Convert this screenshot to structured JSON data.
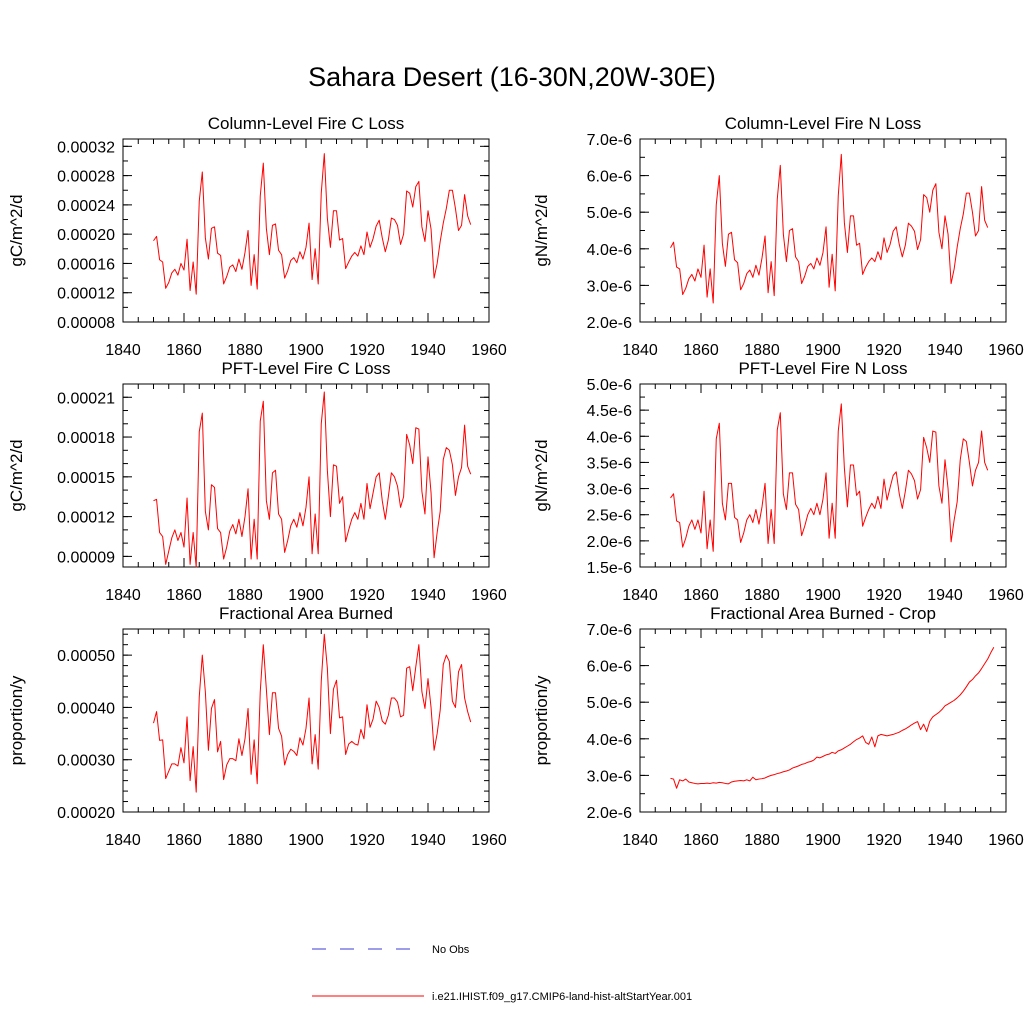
{
  "figure": {
    "title": "Sahara Desert (16-30N,20W-30E)"
  },
  "legend": {
    "entries": [
      {
        "label": "No Obs",
        "color": "#3b3bd6",
        "style": "dashed"
      },
      {
        "label": "i.e21.IHIST.f09_g17.CMIP6-land-hist-altStartYear.001",
        "color": "#ff0000",
        "style": "solid"
      }
    ]
  },
  "chart_data": [
    {
      "type": "line",
      "title": "Column-Level Fire C Loss",
      "ylabel": "gC/m^2/d",
      "xlim": [
        1840,
        1960
      ],
      "ylim": [
        8e-05,
        0.00033
      ],
      "xticks": [
        1840,
        1860,
        1880,
        1900,
        1920,
        1940,
        1960
      ],
      "yticks": [
        8e-05,
        0.00012,
        0.00016,
        0.0002,
        0.00024,
        0.00028,
        0.00032
      ],
      "ytick_labels": [
        "0.00008",
        "0.00012",
        "0.00016",
        "0.00020",
        "0.00024",
        "0.00028",
        "0.00032"
      ],
      "yminor": 2e-05,
      "x_start": 1850,
      "series": [
        {
          "color": "#ff0000",
          "values": [
            0.000191,
            0.000197,
            0.000165,
            0.000162,
            0.000126,
            0.000134,
            0.000147,
            0.000152,
            0.000144,
            0.00016,
            0.000151,
            0.000193,
            0.000123,
            0.000162,
            0.000118,
            0.000245,
            0.000285,
            0.000195,
            0.000166,
            0.000208,
            0.00021,
            0.000174,
            0.000171,
            0.000132,
            0.000142,
            0.000155,
            0.000158,
            0.000149,
            0.000166,
            0.000152,
            0.000175,
            0.000205,
            0.00013,
            0.000172,
            0.000125,
            0.000252,
            0.000297,
            0.000208,
            0.000172,
            0.000212,
            0.000214,
            0.000178,
            0.000172,
            0.00014,
            0.00015,
            0.000164,
            0.000168,
            0.000161,
            0.000176,
            0.000166,
            0.000182,
            0.000215,
            0.000138,
            0.00018,
            0.000132,
            0.000256,
            0.00031,
            0.000222,
            0.000182,
            0.000232,
            0.000232,
            0.000192,
            0.000194,
            0.000153,
            0.000162,
            0.00017,
            0.000175,
            0.00017,
            0.000184,
            0.000172,
            0.000203,
            0.000182,
            0.000194,
            0.000211,
            0.000219,
            0.000195,
            0.000176,
            0.000192,
            0.000222,
            0.00022,
            0.000212,
            0.000186,
            0.0002,
            0.000259,
            0.000256,
            0.000237,
            0.000265,
            0.000272,
            0.00021,
            0.00019,
            0.000232,
            0.000207,
            0.00014,
            0.00016,
            0.00019,
            0.000215,
            0.000235,
            0.00026,
            0.00026,
            0.000235,
            0.000205,
            0.000212,
            0.000254,
            0.000225,
            0.000213
          ]
        }
      ]
    },
    {
      "type": "line",
      "title": "Column-Level Fire N Loss",
      "ylabel": "gN/m^2/d",
      "xlim": [
        1840,
        1960
      ],
      "ylim": [
        2e-06,
        7e-06
      ],
      "xticks": [
        1840,
        1860,
        1880,
        1900,
        1920,
        1940,
        1960
      ],
      "yticks": [
        2e-06,
        3e-06,
        4e-06,
        5e-06,
        6e-06,
        7e-06
      ],
      "ytick_labels": [
        "2.0e-6",
        "3.0e-6",
        "4.0e-6",
        "5.0e-6",
        "6.0e-6",
        "7.0e-6"
      ],
      "yminor": 5e-07,
      "x_start": 1850,
      "series": [
        {
          "color": "#ff0000",
          "values": [
            4.03e-06,
            4.18e-06,
            3.5e-06,
            3.45e-06,
            2.75e-06,
            2.92e-06,
            3.18e-06,
            3.3e-06,
            3.12e-06,
            3.45e-06,
            3.22e-06,
            4.1e-06,
            2.68e-06,
            3.45e-06,
            2.52e-06,
            5.2e-06,
            6e-06,
            4.15e-06,
            3.52e-06,
            4.4e-06,
            4.45e-06,
            3.7e-06,
            3.62e-06,
            2.88e-06,
            3.05e-06,
            3.32e-06,
            3.42e-06,
            3.22e-06,
            3.55e-06,
            3.28e-06,
            3.75e-06,
            4.35e-06,
            2.8e-06,
            3.65e-06,
            2.72e-06,
            5.35e-06,
            6.28e-06,
            4.4e-06,
            3.65e-06,
            4.5e-06,
            4.55e-06,
            3.78e-06,
            3.65e-06,
            3.05e-06,
            3.25e-06,
            3.52e-06,
            3.6e-06,
            3.45e-06,
            3.75e-06,
            3.55e-06,
            3.9e-06,
            4.6e-06,
            2.95e-06,
            3.85e-06,
            2.85e-06,
            5.45e-06,
            6.58e-06,
            4.72e-06,
            3.9e-06,
            4.9e-06,
            4.9e-06,
            4.1e-06,
            4.15e-06,
            3.3e-06,
            3.5e-06,
            3.65e-06,
            3.75e-06,
            3.65e-06,
            3.92e-06,
            3.7e-06,
            4.3e-06,
            3.9e-06,
            4.12e-06,
            4.48e-06,
            4.6e-06,
            4.12e-06,
            3.78e-06,
            4.1e-06,
            4.7e-06,
            4.62e-06,
            4.48e-06,
            3.98e-06,
            4.25e-06,
            5.48e-06,
            5.4e-06,
            5e-06,
            5.6e-06,
            5.78e-06,
            4.45e-06,
            4e-06,
            4.9e-06,
            4.4e-06,
            3.05e-06,
            3.45e-06,
            4.05e-06,
            4.55e-06,
            4.95e-06,
            5.52e-06,
            5.52e-06,
            5e-06,
            4.35e-06,
            4.5e-06,
            5.7e-06,
            4.78e-06,
            4.58e-06
          ]
        }
      ]
    },
    {
      "type": "line",
      "title": "PFT-Level Fire C Loss",
      "ylabel": "gC/m^2/d",
      "xlim": [
        1840,
        1960
      ],
      "ylim": [
        8.2e-05,
        0.00022
      ],
      "xticks": [
        1840,
        1860,
        1880,
        1900,
        1920,
        1940,
        1960
      ],
      "yticks": [
        9e-05,
        0.00012,
        0.00015,
        0.00018,
        0.00021
      ],
      "ytick_labels": [
        "0.00009",
        "0.00012",
        "0.00015",
        "0.00018",
        "0.00021"
      ],
      "yminor": 1e-05,
      "x_start": 1850,
      "series": [
        {
          "color": "#ff0000",
          "values": [
            0.000132,
            0.000133,
            0.000108,
            0.000105,
            8.4e-05,
            9.4e-05,
            0.000104,
            0.00011,
            0.000102,
            0.000108,
            9.7e-05,
            0.000134,
            8.4e-05,
            0.000108,
            8.2e-05,
            0.000184,
            0.000198,
            0.000124,
            0.00011,
            0.000144,
            0.000142,
            0.000111,
            0.000108,
            8.8e-05,
            9.7e-05,
            0.000109,
            0.000114,
            0.000107,
            0.000118,
            0.000105,
            0.00012,
            0.000141,
            8.8e-05,
            0.000118,
            8.8e-05,
            0.000192,
            0.000207,
            0.000132,
            0.000118,
            0.000153,
            0.000155,
            0.000122,
            0.000118,
            9.3e-05,
            0.000102,
            0.000113,
            0.000118,
            0.000112,
            0.000123,
            0.000113,
            0.000127,
            0.00015,
            9.2e-05,
            0.000122,
            9.2e-05,
            0.00019,
            0.000214,
            0.000155,
            0.00012,
            0.000159,
            0.000158,
            0.00013,
            0.000135,
            0.000101,
            0.00011,
            0.000118,
            0.000123,
            0.000118,
            0.00013,
            0.000118,
            0.000145,
            0.000126,
            0.000138,
            0.00015,
            0.000153,
            0.000132,
            0.000118,
            0.000135,
            0.000153,
            0.00015,
            0.000143,
            0.000127,
            0.000135,
            0.000182,
            0.000174,
            0.00016,
            0.000187,
            0.000186,
            0.000139,
            0.000122,
            0.000165,
            0.000138,
            8.9e-05,
            0.000108,
            0.000124,
            0.000163,
            0.000172,
            0.00017,
            0.000159,
            0.000136,
            0.00015,
            0.000157,
            0.000189,
            0.000158,
            0.000152
          ]
        }
      ]
    },
    {
      "type": "line",
      "title": "PFT-Level Fire N Loss",
      "ylabel": "gN/m^2/d",
      "xlim": [
        1840,
        1960
      ],
      "ylim": [
        1.5e-06,
        5e-06
      ],
      "xticks": [
        1840,
        1860,
        1880,
        1900,
        1920,
        1940,
        1960
      ],
      "yticks": [
        1.5e-06,
        2e-06,
        2.5e-06,
        3e-06,
        3.5e-06,
        4e-06,
        4.5e-06,
        5e-06
      ],
      "ytick_labels": [
        "1.5e-6",
        "2.0e-6",
        "2.5e-6",
        "3.0e-6",
        "3.5e-6",
        "4.0e-6",
        "4.5e-6",
        "5.0e-6"
      ],
      "yminor": 2.5e-07,
      "x_start": 1850,
      "series": [
        {
          "color": "#ff0000",
          "values": [
            2.82e-06,
            2.9e-06,
            2.38e-06,
            2.35e-06,
            1.88e-06,
            2.05e-06,
            2.28e-06,
            2.4e-06,
            2.22e-06,
            2.4e-06,
            2.15e-06,
            2.95e-06,
            1.85e-06,
            2.4e-06,
            1.8e-06,
            3.95e-06,
            4.25e-06,
            2.72e-06,
            2.4e-06,
            3.1e-06,
            3.1e-06,
            2.45e-06,
            2.4e-06,
            1.97e-06,
            2.15e-06,
            2.4e-06,
            2.5e-06,
            2.35e-06,
            2.6e-06,
            2.32e-06,
            2.65e-06,
            3.1e-06,
            1.95e-06,
            2.6e-06,
            1.95e-06,
            4.12e-06,
            4.45e-06,
            2.9e-06,
            2.6e-06,
            3.3e-06,
            3.3e-06,
            2.7e-06,
            2.6e-06,
            2.1e-06,
            2.28e-06,
            2.5e-06,
            2.62e-06,
            2.5e-06,
            2.72e-06,
            2.5e-06,
            2.8e-06,
            3.3e-06,
            2.05e-06,
            2.72e-06,
            2.05e-06,
            4.1e-06,
            4.62e-06,
            3.4e-06,
            2.65e-06,
            3.45e-06,
            3.45e-06,
            2.87e-06,
            2.95e-06,
            2.28e-06,
            2.45e-06,
            2.6e-06,
            2.72e-06,
            2.62e-06,
            2.85e-06,
            2.62e-06,
            3.18e-06,
            2.78e-06,
            3.02e-06,
            3.25e-06,
            3.32e-06,
            2.9e-06,
            2.62e-06,
            2.95e-06,
            3.35e-06,
            3.28e-06,
            3.15e-06,
            2.8e-06,
            2.98e-06,
            3.98e-06,
            3.78e-06,
            3.5e-06,
            4.1e-06,
            4.08e-06,
            3.05e-06,
            2.72e-06,
            3.55e-06,
            3e-06,
            1.98e-06,
            2.4e-06,
            2.75e-06,
            3.55e-06,
            3.95e-06,
            3.9e-06,
            3.5e-06,
            3.05e-06,
            3.35e-06,
            3.5e-06,
            4.1e-06,
            3.5e-06,
            3.35e-06
          ]
        }
      ]
    },
    {
      "type": "line",
      "title": "Fractional Area Burned",
      "ylabel": "proportion/y",
      "xlim": [
        1840,
        1960
      ],
      "ylim": [
        0.0002,
        0.00055
      ],
      "xticks": [
        1840,
        1860,
        1880,
        1900,
        1920,
        1940,
        1960
      ],
      "yticks": [
        0.0002,
        0.0003,
        0.0004,
        0.0005
      ],
      "ytick_labels": [
        "0.00020",
        "0.00030",
        "0.00040",
        "0.00050"
      ],
      "yminor": 2e-05,
      "x_start": 1850,
      "series": [
        {
          "color": "#ff0000",
          "values": [
            0.00037,
            0.000392,
            0.000337,
            0.000338,
            0.000264,
            0.000278,
            0.000292,
            0.000292,
            0.000288,
            0.000323,
            0.000294,
            0.000382,
            0.00026,
            0.000325,
            0.000238,
            0.00042,
            0.0005,
            0.00043,
            0.000318,
            0.000398,
            0.000415,
            0.000315,
            0.000335,
            0.000262,
            0.00029,
            0.000302,
            0.000302,
            0.000298,
            0.00034,
            0.000308,
            0.00034,
            0.000398,
            0.000272,
            0.000338,
            0.000254,
            0.00043,
            0.00052,
            0.000435,
            0.000348,
            0.000428,
            0.000428,
            0.00036,
            0.000345,
            0.00029,
            0.00031,
            0.00032,
            0.000316,
            0.000308,
            0.000342,
            0.000328,
            0.00036,
            0.000418,
            0.000292,
            0.000348,
            0.000282,
            0.00045,
            0.00054,
            0.000475,
            0.00035,
            0.000435,
            0.000452,
            0.00038,
            0.000382,
            0.00031,
            0.00033,
            0.000335,
            0.00033,
            0.000328,
            0.000358,
            0.00034,
            0.000405,
            0.000362,
            0.000378,
            0.000412,
            0.0004,
            0.000374,
            0.000368,
            0.000385,
            0.000418,
            0.000418,
            0.00041,
            0.000382,
            0.000385,
            0.000475,
            0.000478,
            0.000432,
            0.000478,
            0.00052,
            0.00043,
            0.000398,
            0.000455,
            0.0004,
            0.000318,
            0.00035,
            0.000395,
            0.000482,
            0.0005,
            0.000488,
            0.000412,
            0.0004,
            0.000468,
            0.000482,
            0.000418,
            0.000392,
            0.000372
          ]
        }
      ]
    },
    {
      "type": "line",
      "title": "Fractional Area Burned - Crop",
      "ylabel": "proportion/y",
      "xlim": [
        1840,
        1960
      ],
      "ylim": [
        2e-06,
        7e-06
      ],
      "xticks": [
        1840,
        1860,
        1880,
        1900,
        1920,
        1940,
        1960
      ],
      "yticks": [
        2e-06,
        3e-06,
        4e-06,
        5e-06,
        6e-06,
        7e-06
      ],
      "ytick_labels": [
        "2.0e-6",
        "3.0e-6",
        "4.0e-6",
        "5.0e-6",
        "6.0e-6",
        "7.0e-6"
      ],
      "yminor": 5e-07,
      "x_start": 1850,
      "series": [
        {
          "color": "#ff0000",
          "values": [
            2.92e-06,
            2.9e-06,
            2.65e-06,
            2.88e-06,
            2.85e-06,
            2.9e-06,
            2.82e-06,
            2.8e-06,
            2.78e-06,
            2.77e-06,
            2.78e-06,
            2.78e-06,
            2.79e-06,
            2.78e-06,
            2.8e-06,
            2.79e-06,
            2.81e-06,
            2.8e-06,
            2.78e-06,
            2.77e-06,
            2.82e-06,
            2.84e-06,
            2.85e-06,
            2.86e-06,
            2.85e-06,
            2.88e-06,
            2.85e-06,
            2.95e-06,
            2.88e-06,
            2.9e-06,
            2.91e-06,
            2.93e-06,
            2.97e-06,
            3e-06,
            3.02e-06,
            3.05e-06,
            3.07e-06,
            3.1e-06,
            3.12e-06,
            3.15e-06,
            3.2e-06,
            3.23e-06,
            3.26e-06,
            3.3e-06,
            3.32e-06,
            3.36e-06,
            3.38e-06,
            3.42e-06,
            3.5e-06,
            3.48e-06,
            3.52e-06,
            3.56e-06,
            3.58e-06,
            3.63e-06,
            3.6e-06,
            3.67e-06,
            3.7e-06,
            3.75e-06,
            3.8e-06,
            3.85e-06,
            3.92e-06,
            3.98e-06,
            4.02e-06,
            4.08e-06,
            3.9e-06,
            3.85e-06,
            4.05e-06,
            3.78e-06,
            4.08e-06,
            4.12e-06,
            4.1e-06,
            4.08e-06,
            4.1e-06,
            4.12e-06,
            4.15e-06,
            4.18e-06,
            4.23e-06,
            4.27e-06,
            4.32e-06,
            4.38e-06,
            4.43e-06,
            4.47e-06,
            4.25e-06,
            4.4e-06,
            4.2e-06,
            4.48e-06,
            4.6e-06,
            4.66e-06,
            4.72e-06,
            4.8e-06,
            4.9e-06,
            4.95e-06,
            5e-06,
            5.05e-06,
            5.12e-06,
            5.2e-06,
            5.3e-06,
            5.42e-06,
            5.55e-06,
            5.62e-06,
            5.72e-06,
            5.8e-06,
            5.92e-06,
            6.05e-06,
            6.18e-06,
            6.35e-06,
            6.5e-06
          ]
        }
      ]
    }
  ]
}
